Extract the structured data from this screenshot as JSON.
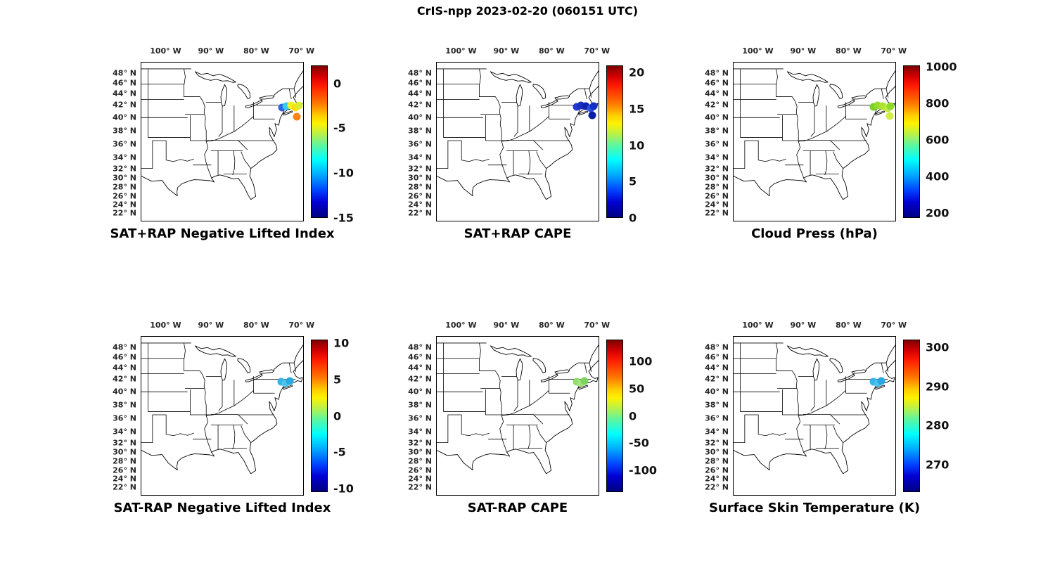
{
  "figure_title": "CrIS-npp 2023-02-20 (060151 UTC)",
  "axes": {
    "lon_ticks": [
      -100,
      -90,
      -80,
      -70
    ],
    "lon_tick_labels": [
      "100° W",
      "90° W",
      "80° W",
      "70° W"
    ],
    "lat_ticks": [
      48,
      46,
      44,
      42,
      40,
      38,
      36,
      34,
      32,
      30,
      28,
      26,
      24,
      22
    ],
    "lat_tick_labels": [
      "48° N",
      "46° N",
      "44° N",
      "42° N",
      "40° N",
      "38° N",
      "36° N",
      "34° N",
      "32° N",
      "30° N",
      "28° N",
      "26° N",
      "24° N",
      "22° N"
    ],
    "extent": {
      "lon_min": -105.5,
      "lon_max": -69.5,
      "lat_min": 21.5,
      "lat_max": 49.5
    }
  },
  "chart_data": [
    {
      "type": "scatter",
      "title": "SAT+RAP Negative Lifted Index",
      "x": "longitude",
      "y": "latitude",
      "colorbar": {
        "colormap": "jet",
        "cmax": 2,
        "cmin": -15,
        "ticks": [
          0,
          -5,
          -10,
          -15
        ],
        "tick_labels": [
          "0",
          "-5",
          "-10",
          "-15"
        ]
      },
      "points": [
        {
          "lon": -74.2,
          "lat": 41.6,
          "color": "#2e64e6"
        },
        {
          "lon": -73.3,
          "lat": 41.8,
          "color": "#38c9f0"
        },
        {
          "lon": -72.2,
          "lat": 41.9,
          "color": "#eef222"
        },
        {
          "lon": -71.2,
          "lat": 41.6,
          "color": "#ffdf0a"
        },
        {
          "lon": -70.4,
          "lat": 41.9,
          "color": "#d9ee2e"
        },
        {
          "lon": -70.9,
          "lat": 40.2,
          "color": "#ff8318"
        }
      ]
    },
    {
      "type": "scatter",
      "title": "SAT+RAP CAPE",
      "x": "longitude",
      "y": "latitude",
      "colorbar": {
        "colormap": "jet",
        "cmax": 21,
        "cmin": 0,
        "ticks": [
          20,
          15,
          10,
          5,
          0
        ],
        "tick_labels": [
          "20",
          "15",
          "10",
          "5",
          "0"
        ]
      },
      "points": [
        {
          "lon": -74.3,
          "lat": 41.7,
          "color": "#2338cc"
        },
        {
          "lon": -73.4,
          "lat": 41.9,
          "color": "#1a2ec2"
        },
        {
          "lon": -72.3,
          "lat": 41.8,
          "color": "#0f23b0"
        },
        {
          "lon": -71.3,
          "lat": 41.5,
          "color": "#2d50e0"
        },
        {
          "lon": -70.6,
          "lat": 41.8,
          "color": "#1330c6"
        },
        {
          "lon": -70.9,
          "lat": 40.4,
          "color": "#0c1ea6"
        }
      ]
    },
    {
      "type": "scatter",
      "title": "Cloud Press (hPa)",
      "x": "longitude",
      "y": "latitude",
      "colorbar": {
        "colormap": "jet",
        "cmax": 1008,
        "cmin": 174,
        "ticks": [
          1000,
          800,
          600,
          400,
          200
        ],
        "tick_labels": [
          "1000",
          "800",
          "600",
          "400",
          "200"
        ]
      },
      "points": [
        {
          "lon": -74.3,
          "lat": 41.7,
          "color": "#79d126"
        },
        {
          "lon": -73.4,
          "lat": 41.9,
          "color": "#95dc2c"
        },
        {
          "lon": -72.3,
          "lat": 41.8,
          "color": "#aae332"
        },
        {
          "lon": -71.3,
          "lat": 41.5,
          "color": "#c2ea3a"
        },
        {
          "lon": -70.6,
          "lat": 41.8,
          "color": "#8cd92a"
        },
        {
          "lon": -70.8,
          "lat": 40.3,
          "color": "#d2ee46"
        }
      ]
    },
    {
      "type": "scatter",
      "title": "SAT-RAP Negative Lifted Index",
      "x": "longitude",
      "y": "latitude",
      "colorbar": {
        "colormap": "jet",
        "cmax": 10.5,
        "cmin": -10.5,
        "ticks": [
          10,
          5,
          0,
          -5,
          -10
        ],
        "tick_labels": [
          "10",
          "5",
          "0",
          "-5",
          "-10"
        ]
      },
      "points": [
        {
          "lon": -74.4,
          "lat": 41.6,
          "color": "#35b4e8"
        },
        {
          "lon": -73.4,
          "lat": 41.4,
          "color": "#4cc4ee"
        },
        {
          "lon": -72.5,
          "lat": 41.7,
          "color": "#2aa8e2"
        }
      ]
    },
    {
      "type": "scatter",
      "title": "SAT-RAP CAPE",
      "x": "longitude",
      "y": "latitude",
      "colorbar": {
        "colormap": "jet",
        "cmax": 140,
        "cmin": -140,
        "ticks": [
          100,
          50,
          0,
          -50,
          -100
        ],
        "tick_labels": [
          "100",
          "50",
          "0",
          "-50",
          "-100"
        ]
      },
      "points": [
        {
          "lon": -74.3,
          "lat": 41.6,
          "color": "#8fdc6e"
        },
        {
          "lon": -73.4,
          "lat": 41.4,
          "color": "#a2e47e"
        },
        {
          "lon": -72.6,
          "lat": 41.7,
          "color": "#7cd45e"
        }
      ]
    },
    {
      "type": "scatter",
      "title": "Surface Skin Temperature (K)",
      "x": "longitude",
      "y": "latitude",
      "colorbar": {
        "colormap": "jet",
        "cmax": 302,
        "cmin": 263,
        "ticks": [
          300,
          290,
          280,
          270
        ],
        "tick_labels": [
          "300",
          "290",
          "280",
          "270"
        ]
      },
      "points": [
        {
          "lon": -74.4,
          "lat": 41.6,
          "color": "#36b2ea"
        },
        {
          "lon": -73.4,
          "lat": 41.4,
          "color": "#4ac2ee"
        },
        {
          "lon": -72.6,
          "lat": 41.7,
          "color": "#2ba6e4"
        }
      ]
    }
  ]
}
